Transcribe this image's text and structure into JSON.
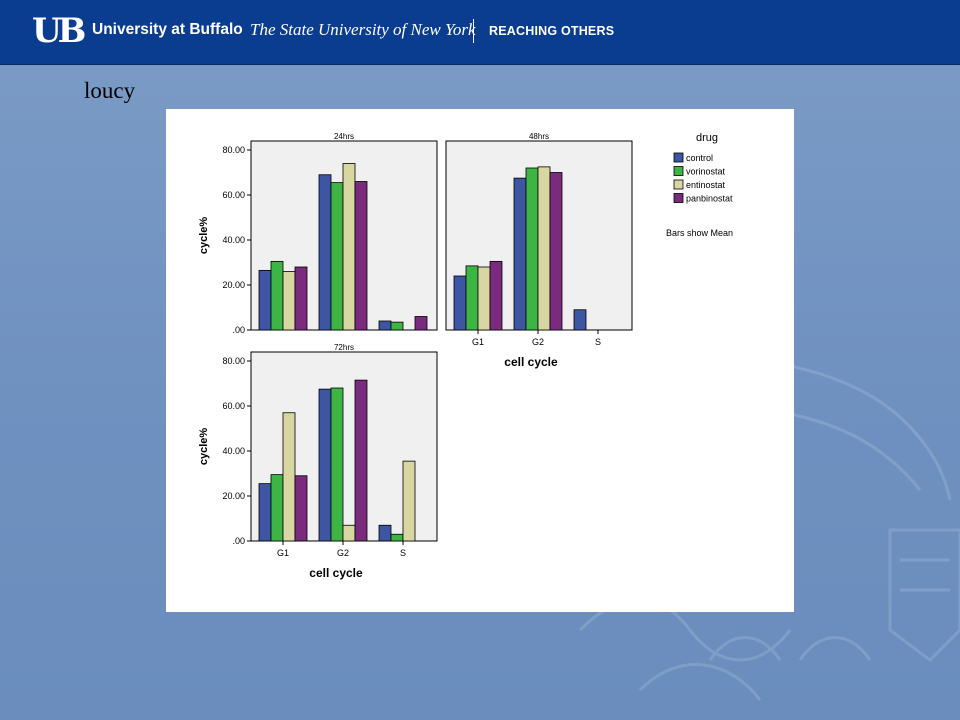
{
  "header": {
    "logo_text": "UB",
    "university": "University at Buffalo",
    "system": "The State University of New York",
    "tagline": "REACHING OTHERS"
  },
  "slide": {
    "title": "loucy"
  },
  "colors": {
    "header_bg": "#0a3d8f",
    "control": "#3d55a3",
    "vorinostat": "#3cb545",
    "entinostat": "#d8d6a1",
    "panbinostat": "#7b2b7e",
    "plot_bg": "#f0f0f0"
  },
  "chart_data": {
    "type": "bar",
    "y_axis_label": "cycle%",
    "x_axis_label": "cell cycle",
    "ylim": [
      0,
      80
    ],
    "yticks": [
      ".00",
      "20.00",
      "40.00",
      "60.00",
      "80.00"
    ],
    "categories": [
      "G1",
      "G2",
      "S"
    ],
    "legend": {
      "title": "drug",
      "placement": "right",
      "entries": [
        "control",
        "vorinostat",
        "entinostat",
        "panbinostat"
      ],
      "note": "Bars show Mean"
    },
    "panels": [
      {
        "title": "24hrs",
        "series": [
          {
            "name": "control",
            "values": [
              26.5,
              69,
              4
            ]
          },
          {
            "name": "vorinostat",
            "values": [
              30.5,
              65.5,
              3.5
            ]
          },
          {
            "name": "entinostat",
            "values": [
              26,
              74,
              0
            ]
          },
          {
            "name": "panbinostat",
            "values": [
              28,
              66,
              6
            ]
          }
        ]
      },
      {
        "title": "48hrs",
        "series": [
          {
            "name": "control",
            "values": [
              24,
              67.5,
              9
            ]
          },
          {
            "name": "vorinostat",
            "values": [
              28.5,
              72,
              0
            ]
          },
          {
            "name": "entinostat",
            "values": [
              28,
              72.5,
              0
            ]
          },
          {
            "name": "panbinostat",
            "values": [
              30.5,
              70,
              0
            ]
          }
        ]
      },
      {
        "title": "72hrs",
        "series": [
          {
            "name": "control",
            "values": [
              25.5,
              67.5,
              7
            ]
          },
          {
            "name": "vorinostat",
            "values": [
              29.5,
              68,
              3
            ]
          },
          {
            "name": "entinostat",
            "values": [
              57,
              7,
              35.5
            ]
          },
          {
            "name": "panbinostat",
            "values": [
              29,
              71.5,
              0
            ]
          }
        ]
      }
    ]
  }
}
